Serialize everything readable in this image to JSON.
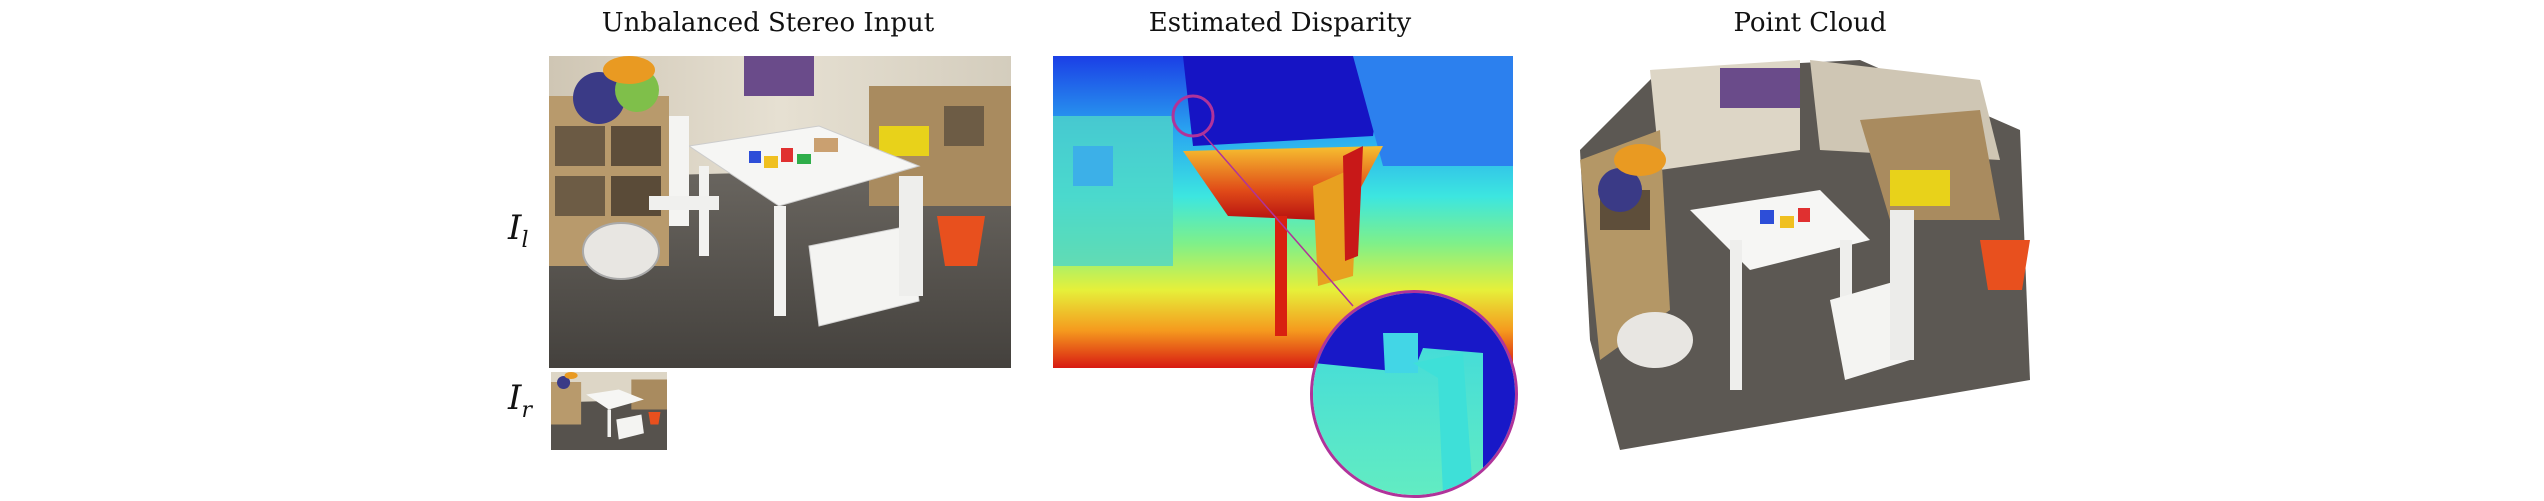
{
  "figure": {
    "titles": {
      "input": "Unbalanced Stereo Input",
      "disparity": "Estimated Disparity",
      "pointcloud": "Point Cloud"
    },
    "labels": {
      "left_symbol": "I",
      "left_sub": "l",
      "right_symbol": "I",
      "right_sub": "r"
    },
    "colors": {
      "zoom_ring": "#b0339a",
      "wall": "#d9d3c6",
      "carpet": "#55524e",
      "table": "#f4f4f2",
      "bucket": "#e8501e",
      "disparity_far": "#1414c8",
      "disparity_near": "#d01010"
    }
  }
}
